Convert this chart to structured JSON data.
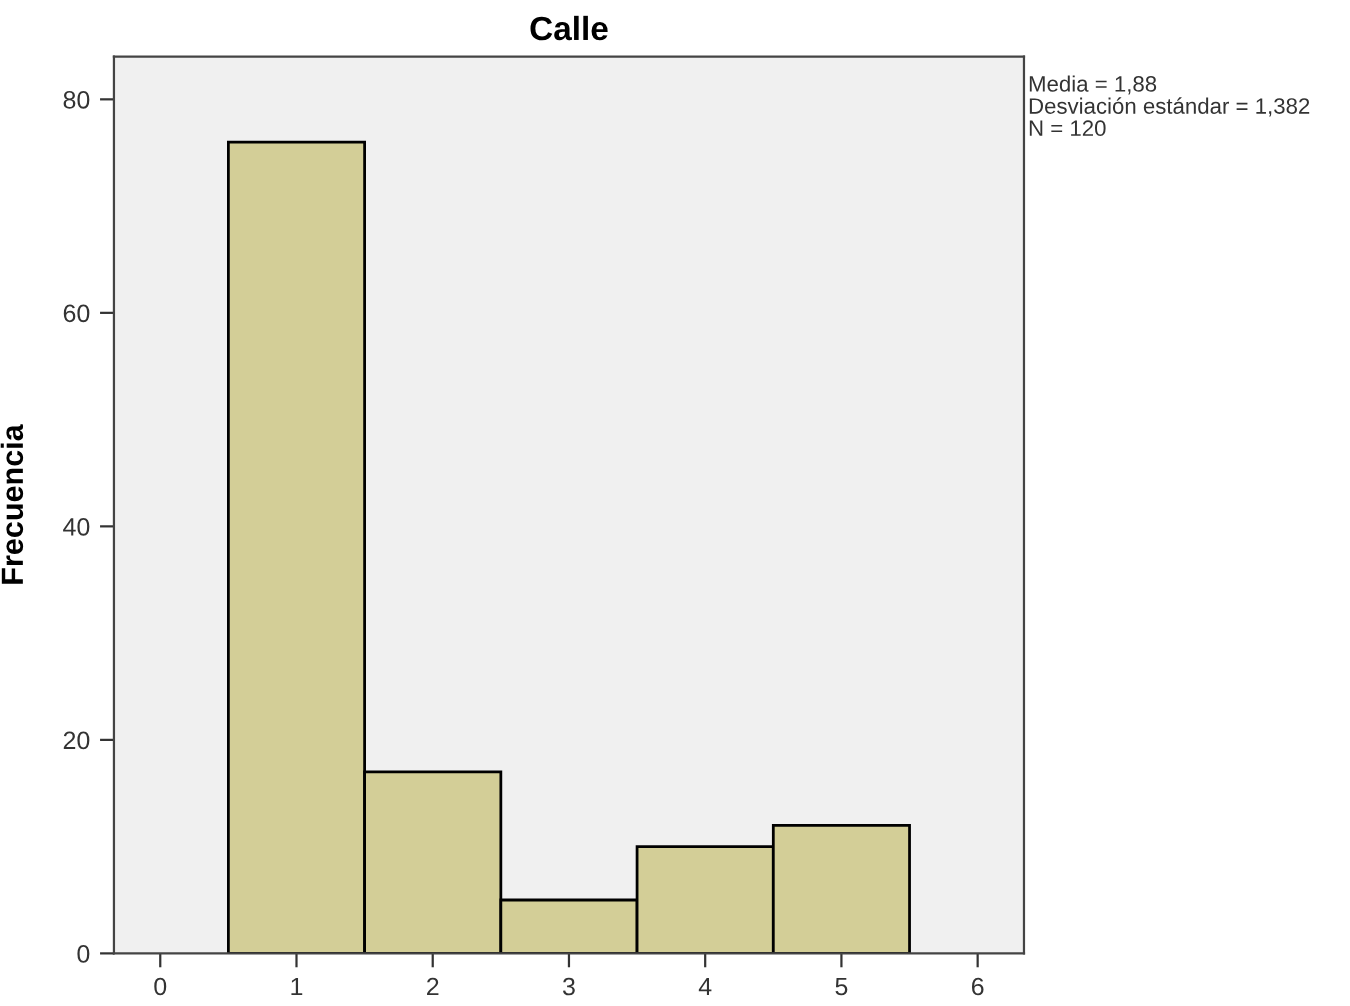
{
  "chart_data": {
    "type": "histogram",
    "title": "Calle",
    "ylabel": "Frecuencia",
    "bins": [
      0.5,
      1.5,
      2.5,
      3.5,
      4.5,
      5.5
    ],
    "values": [
      76,
      17,
      5,
      10,
      12
    ],
    "color": "#d3ce97",
    "xlim": [
      -0.34,
      6.34
    ],
    "xticks": [
      0,
      1,
      2,
      3,
      4,
      5,
      6
    ],
    "ylim": [
      0,
      84
    ],
    "yticks": [
      0,
      20,
      40,
      60,
      80
    ],
    "grid": false,
    "legend": false,
    "annotations": [
      "Media = 1,88",
      "Desviación estándar = 1,382",
      "N = 120"
    ]
  }
}
